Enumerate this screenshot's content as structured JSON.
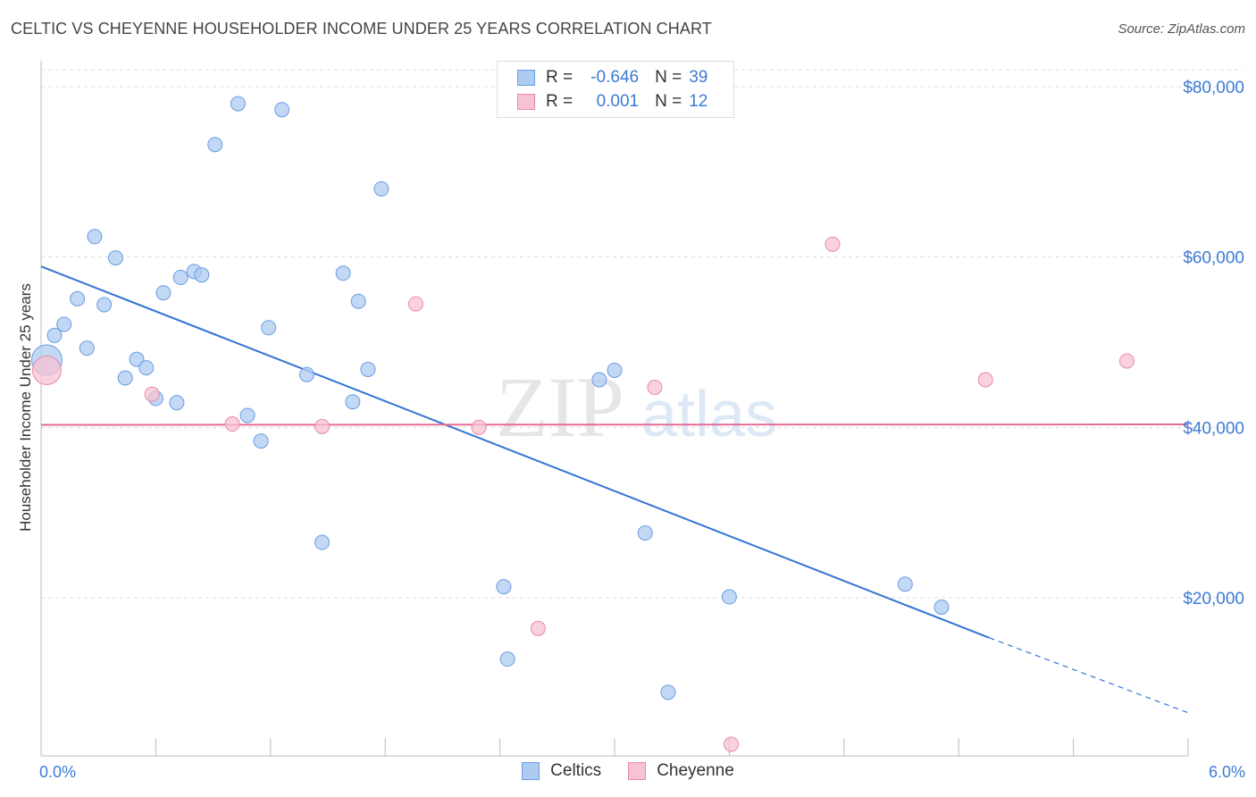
{
  "header": {
    "title": "CELTIC VS CHEYENNE HOUSEHOLDER INCOME UNDER 25 YEARS CORRELATION CHART",
    "source": "Source: ZipAtlas.com"
  },
  "watermark": {
    "zip": "ZIP",
    "atlas": "atlas"
  },
  "legend": {
    "rows": [
      {
        "r_label": "R =",
        "r_value": "-0.646",
        "n_label": "N =",
        "n_value": "39",
        "color": "#aecbf2",
        "border": "#6a9de0"
      },
      {
        "r_label": "R =",
        "r_value": "0.001",
        "n_label": "N =",
        "n_value": "12",
        "color": "#f7c3d3",
        "border": "#e88aa8"
      }
    ]
  },
  "bottom_legend": [
    {
      "label": "Celtics",
      "color": "#aecbf2",
      "border": "#6a9de0"
    },
    {
      "label": "Cheyenne",
      "color": "#f7c3d3",
      "border": "#e88aa8"
    }
  ],
  "chart_data": {
    "type": "scatter",
    "title": "CELTIC VS CHEYENNE HOUSEHOLDER INCOME UNDER 25 YEARS CORRELATION CHART",
    "xlabel": "",
    "ylabel": "Householder Income Under 25 years",
    "xlim": [
      0,
      6
    ],
    "ylim": [
      0,
      82000
    ],
    "x_tick_labels": [
      {
        "value": 0,
        "label": "0.0%"
      },
      {
        "value": 6,
        "label": "6.0%"
      }
    ],
    "y_ticks": [
      {
        "value": 20000,
        "label": "$20,000"
      },
      {
        "value": 40000,
        "label": "$40,000"
      },
      {
        "value": 60000,
        "label": "$60,000"
      },
      {
        "value": 80000,
        "label": "$80,000"
      }
    ],
    "grid": true,
    "legend_position": "top-center",
    "series": [
      {
        "name": "Celtics",
        "color": "#aecbf2",
        "stroke": "#6a9de0",
        "line_color": "#3474d4",
        "points": [
          [
            0.03,
            47900
          ],
          [
            0.07,
            50800
          ],
          [
            0.12,
            52100
          ],
          [
            0.19,
            55100
          ],
          [
            0.24,
            49300
          ],
          [
            0.28,
            62400
          ],
          [
            0.33,
            54400
          ],
          [
            0.39,
            59900
          ],
          [
            0.44,
            45800
          ],
          [
            0.5,
            48000
          ],
          [
            0.55,
            47000
          ],
          [
            0.6,
            43400
          ],
          [
            0.64,
            55800
          ],
          [
            0.71,
            42900
          ],
          [
            0.73,
            57600
          ],
          [
            0.8,
            58300
          ],
          [
            0.84,
            57900
          ],
          [
            0.91,
            73200
          ],
          [
            1.03,
            78000
          ],
          [
            1.08,
            41400
          ],
          [
            1.15,
            38400
          ],
          [
            1.19,
            51700
          ],
          [
            1.26,
            77300
          ],
          [
            1.39,
            46200
          ],
          [
            1.47,
            26500
          ],
          [
            1.58,
            58100
          ],
          [
            1.63,
            43000
          ],
          [
            1.66,
            54800
          ],
          [
            1.71,
            46800
          ],
          [
            1.78,
            68000
          ],
          [
            2.42,
            21300
          ],
          [
            2.44,
            12800
          ],
          [
            2.92,
            45600
          ],
          [
            3.0,
            46700
          ],
          [
            3.16,
            27600
          ],
          [
            3.28,
            8900
          ],
          [
            3.6,
            20100
          ],
          [
            4.52,
            21600
          ],
          [
            4.71,
            18900
          ]
        ],
        "trend": {
          "x0": 0.0,
          "y0": 58900,
          "x1": 4.96,
          "y1": 15300,
          "dash_to_x": 6.0,
          "dash_to_y": 6500
        }
      },
      {
        "name": "Cheyenne",
        "color": "#f7c3d3",
        "stroke": "#e88aa8",
        "line_color": "#e56b95",
        "points": [
          [
            0.03,
            46700
          ],
          [
            0.58,
            43900
          ],
          [
            1.0,
            40400
          ],
          [
            1.47,
            40100
          ],
          [
            1.96,
            54500
          ],
          [
            2.29,
            40000
          ],
          [
            2.6,
            16400
          ],
          [
            3.21,
            44700
          ],
          [
            3.61,
            2800
          ],
          [
            4.14,
            61500
          ],
          [
            4.94,
            45600
          ],
          [
            5.68,
            47800
          ]
        ],
        "trend": {
          "x0": 0.0,
          "y0": 40300,
          "x1": 6.0,
          "y1": 40350
        }
      }
    ]
  }
}
